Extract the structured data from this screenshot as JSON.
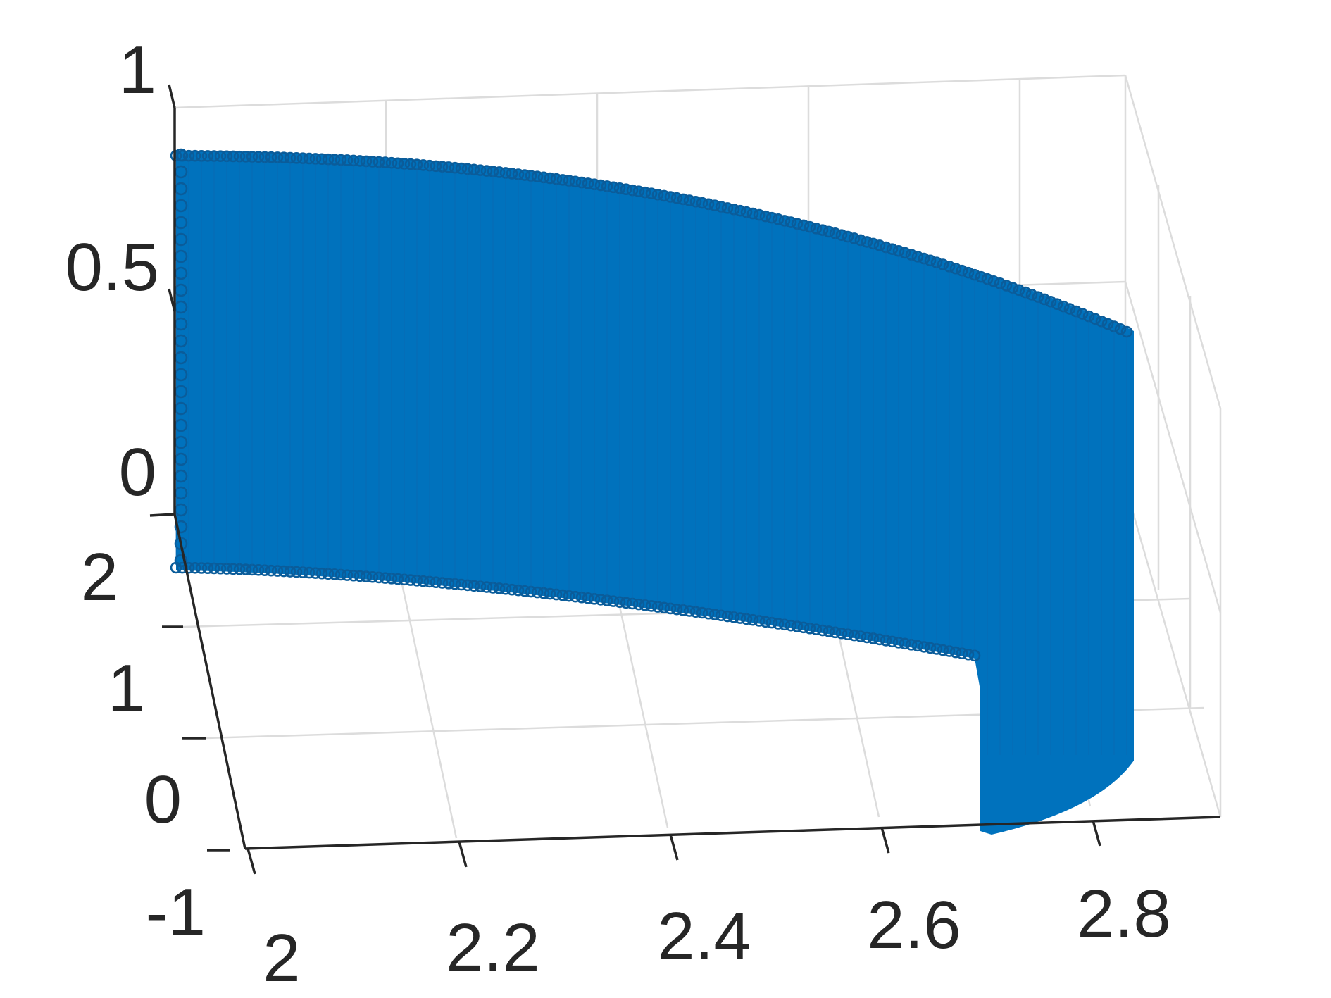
{
  "chart_data": {
    "type": "scatter3d",
    "title": "",
    "xlabel": "",
    "ylabel": "",
    "zlabel": "",
    "marker": "o",
    "series_color": "#0072BD",
    "grid": true,
    "xlim": [
      2,
      2.9
    ],
    "ylim": [
      -1,
      2.3
    ],
    "zlim": [
      -0.1,
      1
    ],
    "x_ticks": [
      "2",
      "2.2",
      "2.4",
      "2.6",
      "2.8"
    ],
    "y_ticks": [
      "-1",
      "0",
      "1",
      "2"
    ],
    "z_ticks": [
      "0",
      "0.5",
      "1"
    ],
    "series": [
      {
        "x_range": [
          2.0,
          2.76
        ],
        "y_range": [
          -1,
          2.2
        ],
        "z_range": [
          -0.05,
          0.78
        ],
        "description_note": ""
      }
    ]
  }
}
